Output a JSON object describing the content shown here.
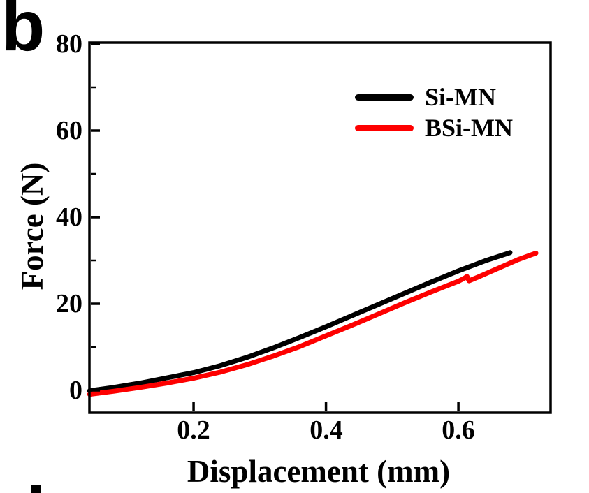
{
  "figure": {
    "panel_label": "b"
  },
  "chart_data": {
    "type": "line",
    "title": "",
    "xlabel": "Displacement (mm)",
    "ylabel": "Force (N)",
    "xlim": [
      0.0427,
      0.7392
    ],
    "ylim": [
      -5.16,
      80.32
    ],
    "grid": false,
    "legend_position": "upper-right-inside",
    "xticks": [
      0.2,
      0.4,
      0.6
    ],
    "xtick_labels": [
      "0.2",
      "0.4",
      "0.6"
    ],
    "yticks": [
      0,
      20,
      40,
      60,
      80
    ],
    "ytick_labels": [
      "0",
      "20",
      "40",
      "60",
      "80"
    ],
    "yticks_minor": [
      10,
      30,
      50,
      70
    ],
    "axis_color": "#000000",
    "series": [
      {
        "name": "Si-MN",
        "color": "#000000",
        "points": [
          [
            0.043,
            -0.1
          ],
          [
            0.08,
            0.7
          ],
          [
            0.12,
            1.7
          ],
          [
            0.16,
            2.9
          ],
          [
            0.2,
            4.1
          ],
          [
            0.24,
            5.7
          ],
          [
            0.28,
            7.6
          ],
          [
            0.32,
            9.8
          ],
          [
            0.36,
            12.2
          ],
          [
            0.4,
            14.7
          ],
          [
            0.44,
            17.3
          ],
          [
            0.48,
            19.9
          ],
          [
            0.52,
            22.5
          ],
          [
            0.56,
            25.1
          ],
          [
            0.6,
            27.6
          ],
          [
            0.64,
            29.9
          ],
          [
            0.678,
            31.8
          ]
        ]
      },
      {
        "name": "BSi-MN",
        "color": "#fe0000",
        "points": [
          [
            0.043,
            -0.9
          ],
          [
            0.08,
            -0.2
          ],
          [
            0.12,
            0.7
          ],
          [
            0.16,
            1.7
          ],
          [
            0.2,
            2.8
          ],
          [
            0.24,
            4.2
          ],
          [
            0.28,
            5.9
          ],
          [
            0.32,
            7.9
          ],
          [
            0.36,
            10.1
          ],
          [
            0.4,
            12.6
          ],
          [
            0.44,
            15.1
          ],
          [
            0.48,
            17.7
          ],
          [
            0.52,
            20.3
          ],
          [
            0.56,
            22.8
          ],
          [
            0.6,
            25.2
          ],
          [
            0.61,
            26.0
          ],
          [
            0.613,
            26.3
          ],
          [
            0.616,
            25.3
          ],
          [
            0.63,
            26.2
          ],
          [
            0.66,
            28.2
          ],
          [
            0.69,
            30.2
          ],
          [
            0.717,
            31.7
          ]
        ]
      }
    ]
  }
}
